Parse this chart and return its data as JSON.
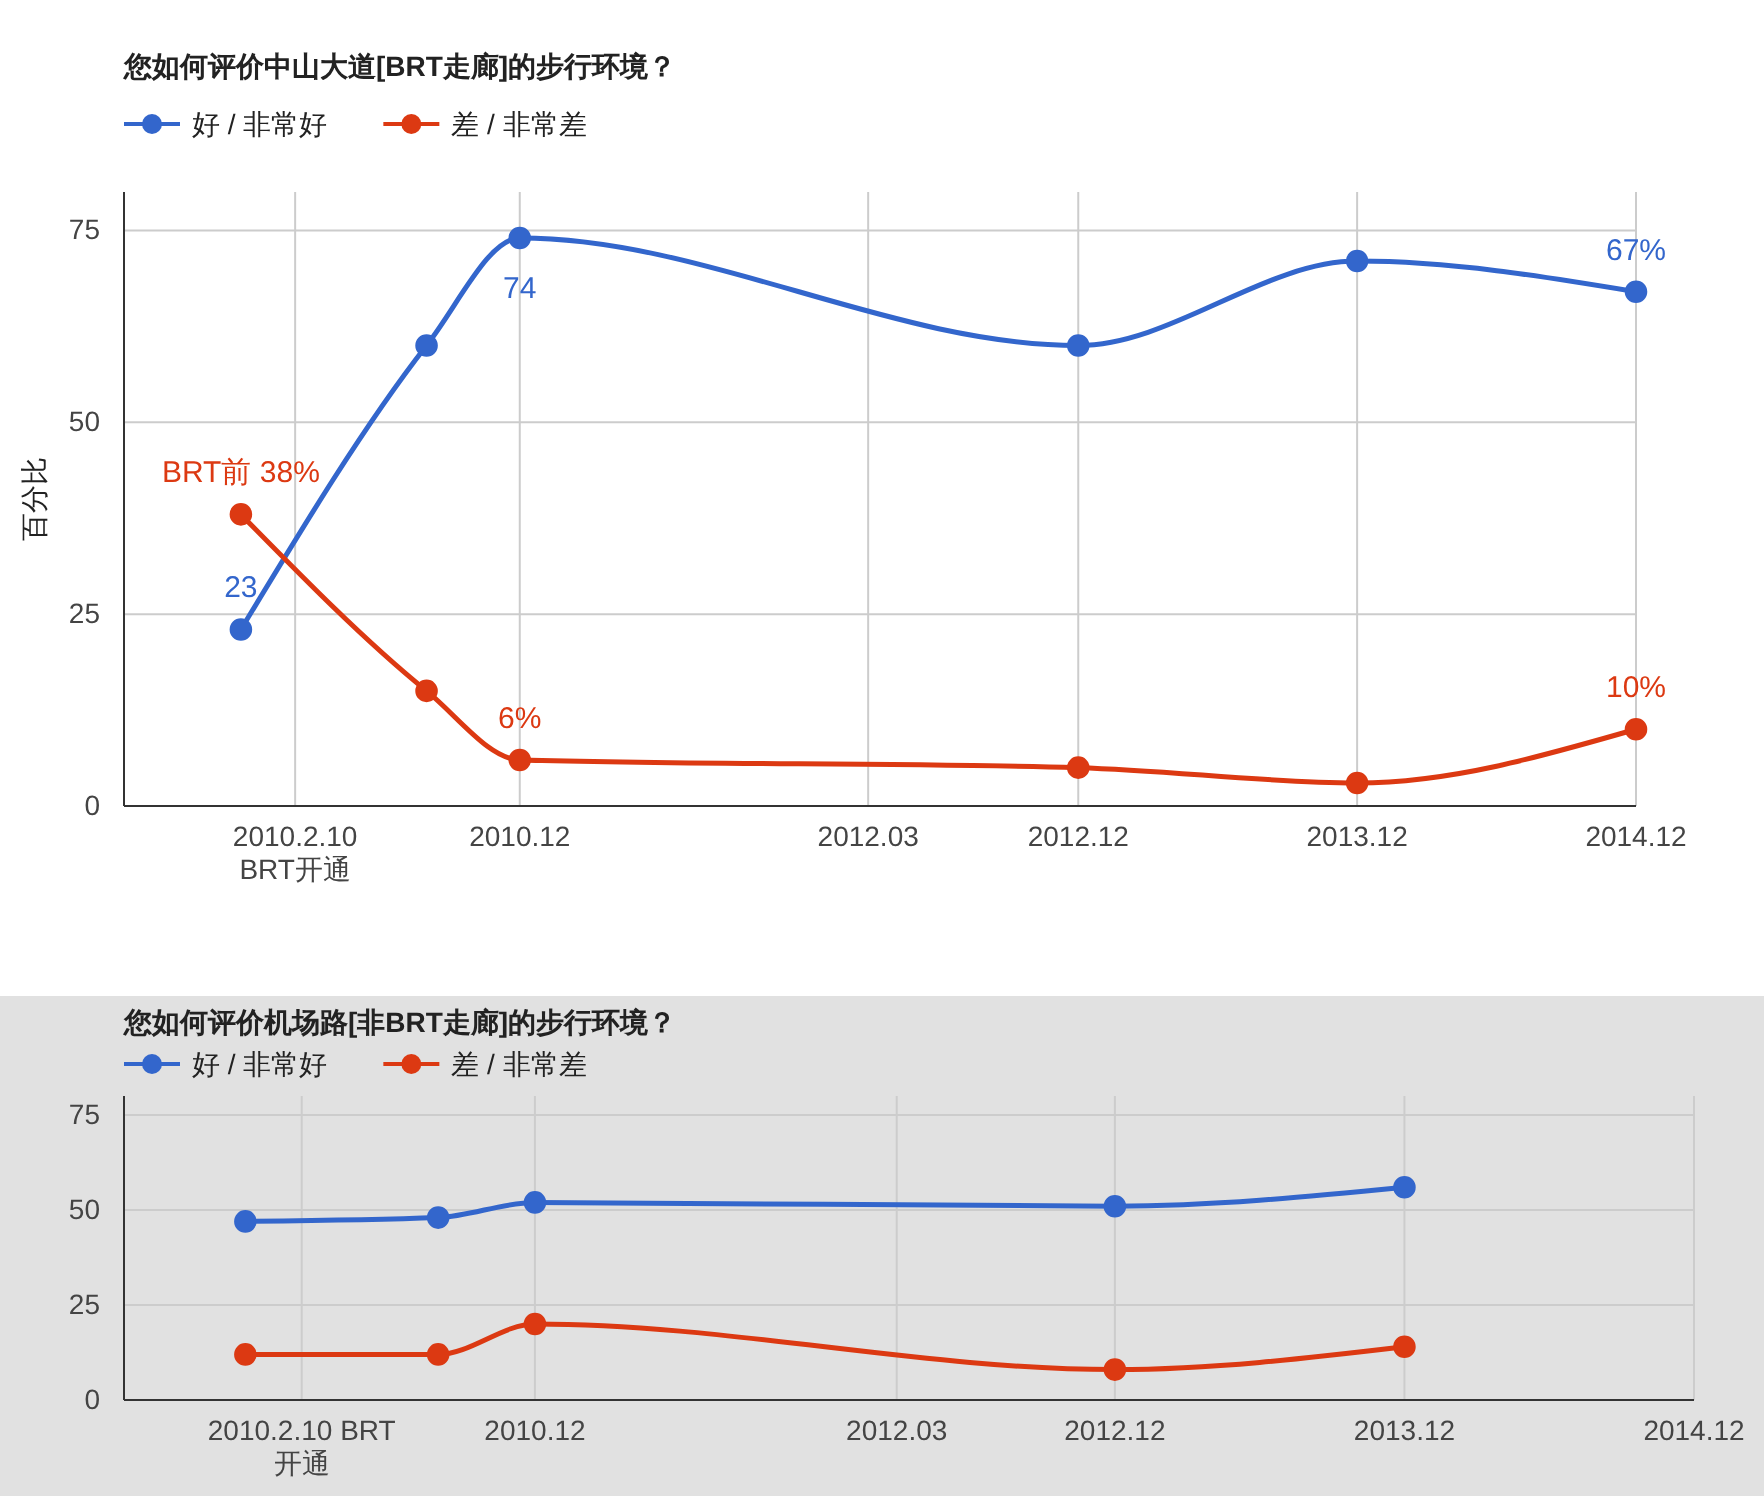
{
  "chart_data": [
    {
      "type": "line",
      "title": "您如何评价中山大道[BRT走廊]的步行环境？",
      "ylabel": "百分比",
      "x": [
        "2009-12",
        "2010-08",
        "2010-12",
        "2012-12",
        "2013-12",
        "2014-12"
      ],
      "series": [
        {
          "name": "好 / 非常好",
          "color": "#3366cc",
          "values": [
            23,
            60,
            74,
            60,
            71,
            67
          ],
          "value_labels": [
            "23",
            null,
            "74",
            null,
            null,
            "67%"
          ]
        },
        {
          "name": "差 / 非常差",
          "color": "#dc3912",
          "values": [
            38,
            15,
            6,
            5,
            3,
            10
          ],
          "value_labels": [
            "BRT前 38%",
            null,
            "6%",
            null,
            null,
            "10%"
          ]
        }
      ],
      "xlim": [
        "2009-07",
        "2014-12"
      ],
      "xticks": [
        {
          "value": "2010-02-10",
          "label": "2010.2.10\nBRT开通"
        },
        {
          "value": "2010-12",
          "label": "2010.12"
        },
        {
          "value": "2012-03",
          "label": "2012.03"
        },
        {
          "value": "2012-12",
          "label": "2012.12"
        },
        {
          "value": "2013-12",
          "label": "2013.12"
        },
        {
          "value": "2014-12",
          "label": "2014.12"
        }
      ],
      "ylim": [
        0,
        80
      ],
      "yticks": [
        0,
        25,
        50,
        75
      ],
      "grid": true,
      "legend": "top",
      "marker": "circle"
    },
    {
      "type": "line",
      "title": "您如何评价机场路[非BRT走廊]的步行环境？",
      "x": [
        "2009-12",
        "2010-08",
        "2010-12",
        "2012-12",
        "2013-12"
      ],
      "series": [
        {
          "name": "好 / 非常好",
          "color": "#3366cc",
          "values": [
            47,
            48,
            52,
            51,
            56
          ]
        },
        {
          "name": "差 / 非常差",
          "color": "#dc3912",
          "values": [
            12,
            12,
            20,
            8,
            14
          ]
        }
      ],
      "xlim": [
        "2009-07",
        "2014-12"
      ],
      "xticks": [
        {
          "value": "2010-02-10",
          "label": "2010.2.10 BRT\n开通"
        },
        {
          "value": "2010-12",
          "label": "2010.12"
        },
        {
          "value": "2012-03",
          "label": "2012.03"
        },
        {
          "value": "2012-12",
          "label": "2012.12"
        },
        {
          "value": "2013-12",
          "label": "2013.12"
        },
        {
          "value": "2014-12",
          "label": "2014.12"
        }
      ],
      "ylim": [
        0,
        80
      ],
      "yticks": [
        0,
        25,
        50,
        75
      ],
      "grid": true,
      "legend": "top",
      "marker": "circle"
    }
  ]
}
